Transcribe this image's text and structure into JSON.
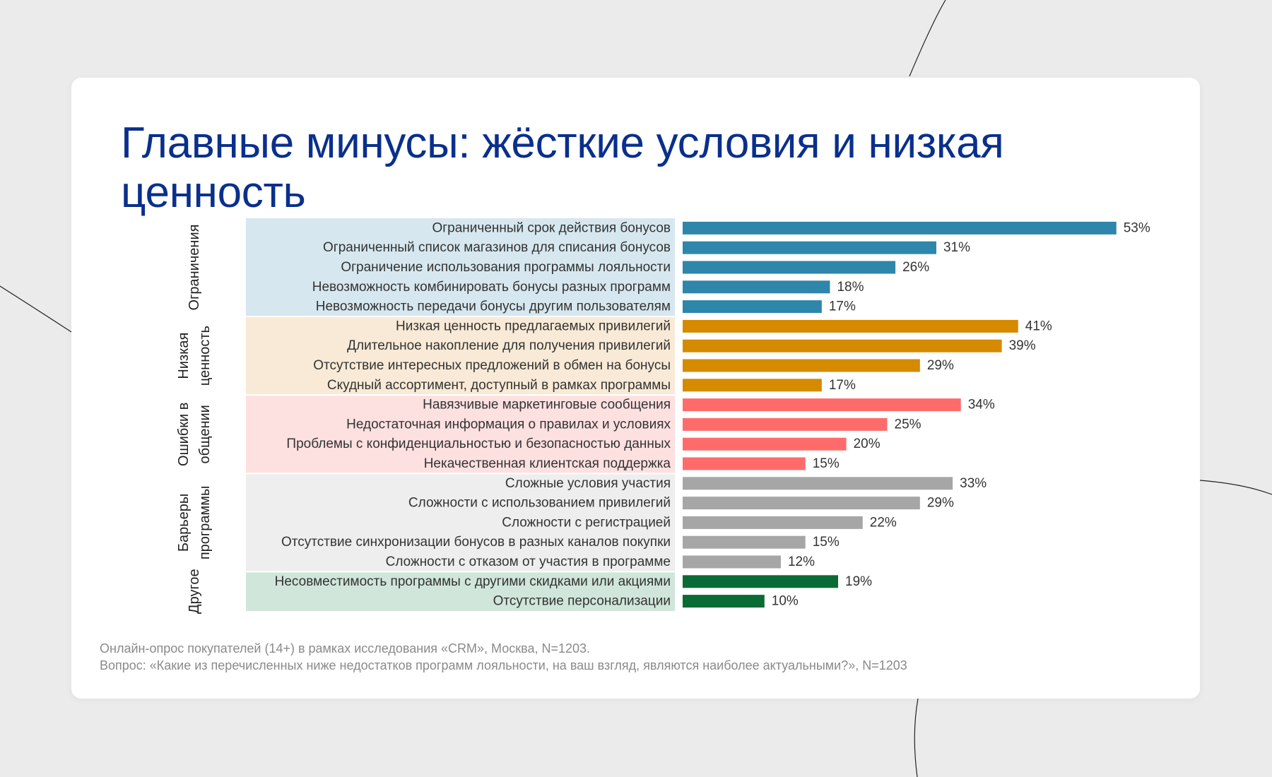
{
  "title": "Главные минусы: жёсткие условия и низкая ценность",
  "footnote": {
    "line1": "Онлайн-опрос покупателей (14+) в рамках исследования «CRM», Москва, N=1203.",
    "line2": "Вопрос: «Какие из перечисленных ниже недостатков программ лояльности, на ваш взгляд, являются наиболее актуальными?», N=1203"
  },
  "chart_data": {
    "type": "bar",
    "orientation": "horizontal",
    "value_suffix": "%",
    "groups": [
      {
        "name": "Ограничения",
        "name_lines": [
          "Ограничения"
        ],
        "color": "#2e86ab",
        "background": "#d6e7ef",
        "items": [
          {
            "label": "Ограниченный срок действия бонусов",
            "value": 53
          },
          {
            "label": "Ограниченный список магазинов для списания бонусов",
            "value": 31
          },
          {
            "label": "Ограничение использования программы лояльности",
            "value": 26
          },
          {
            "label": "Невозможность комбинировать бонусы разных программ",
            "value": 18
          },
          {
            "label": "Невозможность передачи бонусы другим пользователям",
            "value": 17
          }
        ]
      },
      {
        "name": "Низкая ценность",
        "name_lines": [
          "Низкая",
          "ценность"
        ],
        "color": "#d68a00",
        "background": "#f8ead6",
        "items": [
          {
            "label": "Низкая ценность предлагаемых привилегий",
            "value": 41
          },
          {
            "label": "Длительное накопление для получения привилегий",
            "value": 39
          },
          {
            "label": "Отсутствие интересных предложений в обмен на бонусы",
            "value": 29
          },
          {
            "label": "Скудный ассортимент, доступный в рамках программы",
            "value": 17
          }
        ]
      },
      {
        "name": "Ошибки в общении",
        "name_lines": [
          "Ошибки в",
          "общении"
        ],
        "color": "#ff6b6b",
        "background": "#fde0e0",
        "items": [
          {
            "label": "Навязчивые маркетинговые сообщения",
            "value": 34
          },
          {
            "label": "Недостаточная информация о правилах и условиях",
            "value": 25
          },
          {
            "label": "Проблемы с конфиденциальностью и безопасностью  данных",
            "value": 20
          },
          {
            "label": "Некачественная клиентская поддержка",
            "value": 15
          }
        ]
      },
      {
        "name": "Барьеры программы",
        "name_lines": [
          "Барьеры",
          "программы"
        ],
        "color": "#a6a6a6",
        "background": "#eeeeee",
        "items": [
          {
            "label": "Сложные условия участия",
            "value": 33
          },
          {
            "label": "Сложности с использованием привилегий",
            "value": 29
          },
          {
            "label": "Сложности с регистрацией",
            "value": 22
          },
          {
            "label": "Отсутствие синхронизации бонусов в разных каналов покупки",
            "value": 15
          },
          {
            "label": "Сложности с отказом от участия в программе",
            "value": 12
          }
        ]
      },
      {
        "name": "Другое",
        "name_lines": [
          "Другое"
        ],
        "color": "#0b6b34",
        "background": "#d0e6da",
        "items": [
          {
            "label": "Несовместимость программы с другими скидками или акциями",
            "value": 19
          },
          {
            "label": "Отсутствие персонализации",
            "value": 10
          }
        ]
      }
    ]
  }
}
